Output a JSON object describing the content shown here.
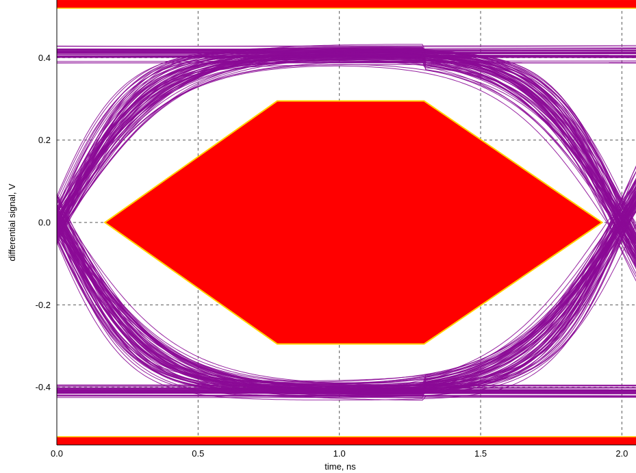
{
  "chart_data": {
    "type": "line",
    "title": "",
    "xlabel": "time, ns",
    "ylabel": "differential signal, V",
    "xlim": [
      0.0,
      2.05
    ],
    "ylim": [
      -0.54,
      0.54
    ],
    "x_ticks": [
      0.0,
      0.5,
      1.0,
      1.5,
      2.0
    ],
    "x_tick_labels": [
      "0.0",
      "0.5",
      "1.0",
      "1.5",
      "2.0"
    ],
    "y_ticks": [
      0.4,
      0.2,
      0.0,
      -0.2,
      -0.4
    ],
    "y_tick_labels": [
      "0.4",
      "0.2",
      "0.0",
      "-0.2",
      "-0.4"
    ],
    "grid": true,
    "colors": {
      "traces": "#8b0a96",
      "mask_fill": "#ff0000",
      "mask_edge": "#ffd200"
    },
    "eye_diagram": {
      "unit_interval_ns": 2.0,
      "high_level": 0.41,
      "low_level": -0.41,
      "level_spread": 0.03,
      "crossing_times_ns": [
        0.0,
        2.0
      ]
    },
    "mask": {
      "center_polygon": [
        [
          0.17,
          0.0
        ],
        [
          0.78,
          0.295
        ],
        [
          1.3,
          0.295
        ],
        [
          1.93,
          0.0
        ],
        [
          1.3,
          -0.295
        ],
        [
          0.78,
          -0.295
        ]
      ],
      "upper_bar_y": 0.53,
      "lower_bar_y": -0.53
    }
  }
}
